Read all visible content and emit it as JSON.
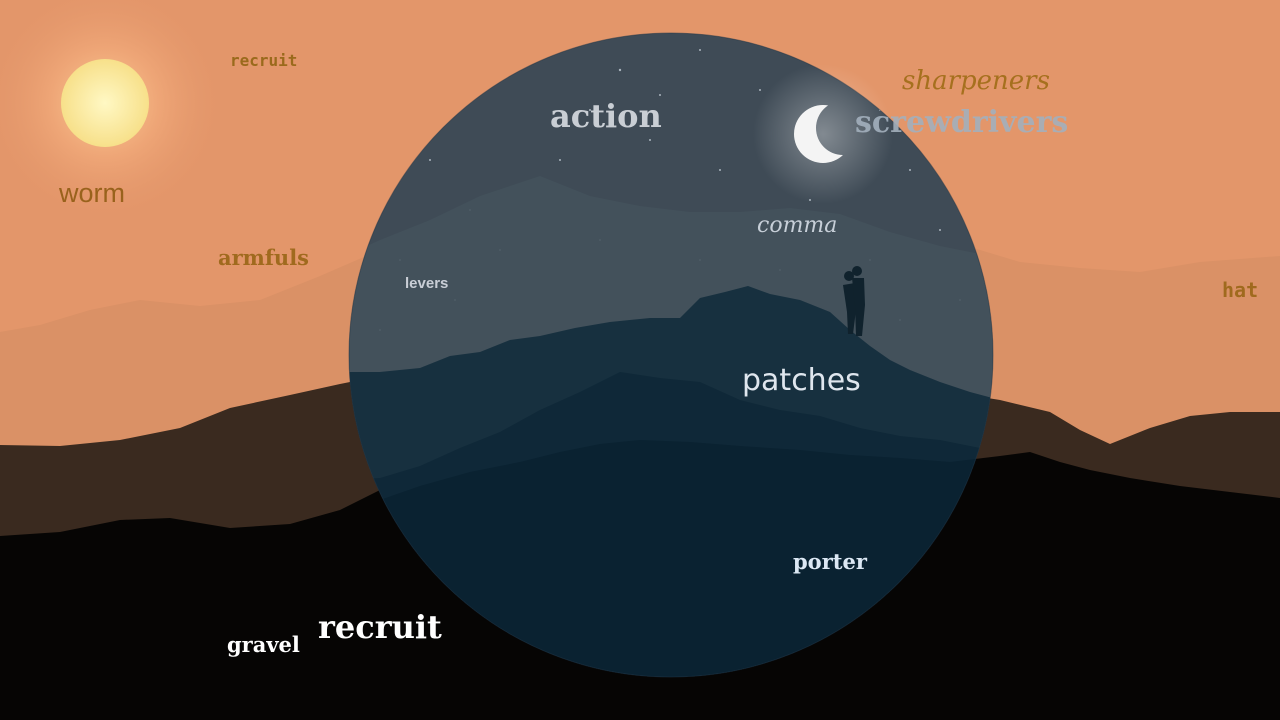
{
  "scene": {
    "colors": {
      "sky": "#e3966a",
      "sun_glow": "#f6b07f",
      "sun": "#fbeaa0",
      "far_hills": "#d99064",
      "mid_hills": "#3a2a1f",
      "foreground": "#050403",
      "night_disc": "#233e52",
      "night_sky": "#3d4a55",
      "night_hills_far": "#39505e",
      "night_hills_near": "#16303f",
      "night_foreground": "#0c2332",
      "moon": "#f2f2f2"
    },
    "icons": [
      "sun-icon",
      "moon-icon",
      "couple-silhouette-icon"
    ]
  },
  "words": {
    "recruit_small": "recruit",
    "worm": "worm",
    "armfuls": "armfuls",
    "action": "action",
    "sharpeners": "sharpeners",
    "screwdrivers": "screwdrivers",
    "comma": "comma",
    "levers": "levers",
    "hat": "hat",
    "patches": "patches",
    "porter": "porter",
    "gravel": "gravel",
    "recruit_large": "recruit"
  }
}
